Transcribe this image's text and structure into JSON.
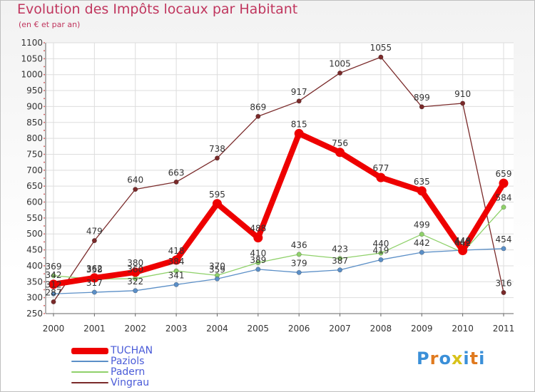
{
  "chart_data": {
    "type": "line",
    "title": "Evolution des Impôts locaux par Habitant",
    "subtitle": "(en € et par an)",
    "categories": [
      "2000",
      "2001",
      "2002",
      "2003",
      "2004",
      "2005",
      "2006",
      "2007",
      "2008",
      "2009",
      "2010",
      "2011"
    ],
    "ylim": [
      250,
      1100
    ],
    "yticks": [
      250,
      300,
      350,
      400,
      450,
      500,
      550,
      600,
      650,
      700,
      750,
      800,
      850,
      900,
      950,
      1000,
      1050,
      1100
    ],
    "series": [
      {
        "name": "Vingrau",
        "color": "#7a2a2a",
        "values": [
          287,
          479,
          640,
          663,
          738,
          869,
          917,
          1005,
          1055,
          899,
          910,
          316
        ],
        "labels": [
          "287",
          "479",
          "640",
          "663",
          "738",
          "869",
          "917",
          "1005",
          "1055",
          "899",
          "910",
          "316"
        ]
      },
      {
        "name": "Padern",
        "color": "#8fd16a",
        "values": [
          369,
          358,
          360,
          384,
          370,
          410,
          436,
          423,
          440,
          499,
          442,
          584
        ],
        "labels": [
          "369",
          "358",
          "360",
          "384",
          "370",
          "410",
          "436",
          "423",
          "440",
          "499",
          "442",
          "584"
        ]
      },
      {
        "name": "Paziols",
        "color": "#5b8fc7",
        "values": [
          312,
          317,
          322,
          341,
          359,
          389,
          379,
          387,
          419,
          442,
          449,
          454
        ],
        "labels": [
          "312",
          "317",
          "322",
          "341",
          "359",
          "389",
          "379",
          "387",
          "419",
          "442",
          "449",
          "454"
        ]
      },
      {
        "name": "TUCHAN",
        "color": "#ee0000",
        "values": [
          342,
          362,
          380,
          418,
          595,
          488,
          815,
          756,
          677,
          635,
          448,
          659
        ],
        "labels": [
          "342",
          "362",
          "380",
          "418",
          "595",
          "488",
          "815",
          "756",
          "677",
          "635",
          "448",
          "659"
        ]
      }
    ],
    "legend": [
      "TUCHAN",
      "Paziols",
      "Padern",
      "Vingrau"
    ],
    "legend_position": "bottom-left"
  },
  "legend_colors": {
    "TUCHAN": "#ee0000",
    "Paziols": "#5b8fc7",
    "Padern": "#8fd16a",
    "Vingrau": "#7a2a2a"
  },
  "brand": {
    "name": "Proxiti",
    "letters": [
      "P",
      "r",
      "o",
      "x",
      "i",
      "t",
      "i"
    ],
    "colors": [
      "#3a8fd8",
      "#e07a1f",
      "#3a8fd8",
      "#d8c21a",
      "#3a8fd8",
      "#e07a1f",
      "#3a8fd8"
    ]
  }
}
